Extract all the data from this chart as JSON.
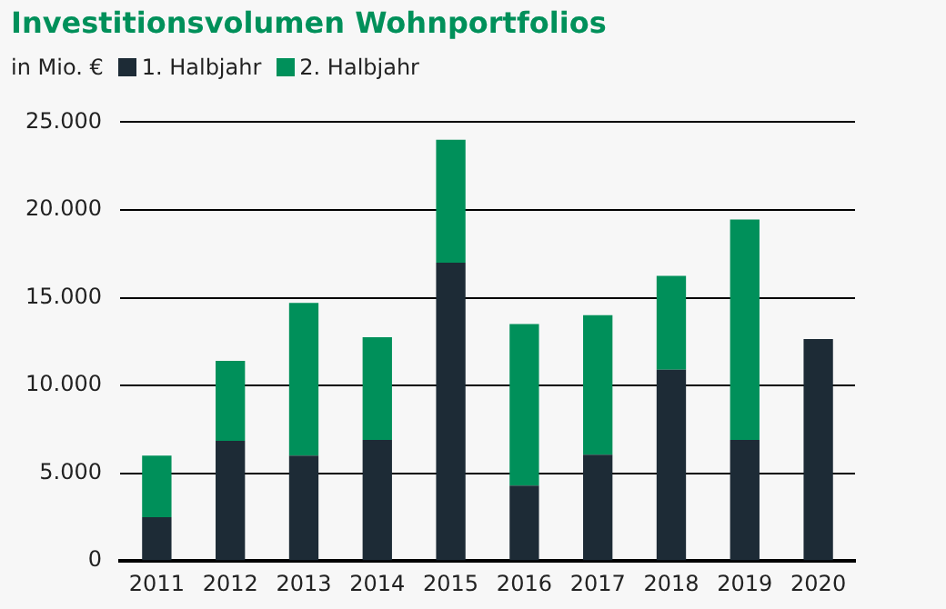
{
  "chart_data": {
    "type": "bar",
    "title": "Investitionsvolumen Wohnportfolios",
    "ylabel": "in Mio. €",
    "categories": [
      "2011",
      "2012",
      "2013",
      "2014",
      "2015",
      "2016",
      "2017",
      "2018",
      "2019",
      "2020"
    ],
    "series": [
      {
        "name": "1. Halbjahr",
        "color": "#1d2b36",
        "values": [
          2500,
          6850,
          6000,
          6900,
          17000,
          4300,
          6050,
          10900,
          6900,
          12650
        ]
      },
      {
        "name": "2. Halbjahr",
        "color": "#00905a",
        "values": [
          3500,
          4550,
          8700,
          5850,
          7000,
          9200,
          7950,
          5350,
          12550,
          null
        ]
      }
    ],
    "stacked": true,
    "ylim": [
      0,
      25000
    ],
    "yticks": [
      {
        "value": 0,
        "label": "0"
      },
      {
        "value": 5000,
        "label": "5.000"
      },
      {
        "value": 10000,
        "label": "10.000"
      },
      {
        "value": 15000,
        "label": "15.000"
      },
      {
        "value": 20000,
        "label": "20.000"
      },
      {
        "value": 25000,
        "label": "25.000"
      }
    ],
    "grid": "y",
    "legend": "top left"
  }
}
